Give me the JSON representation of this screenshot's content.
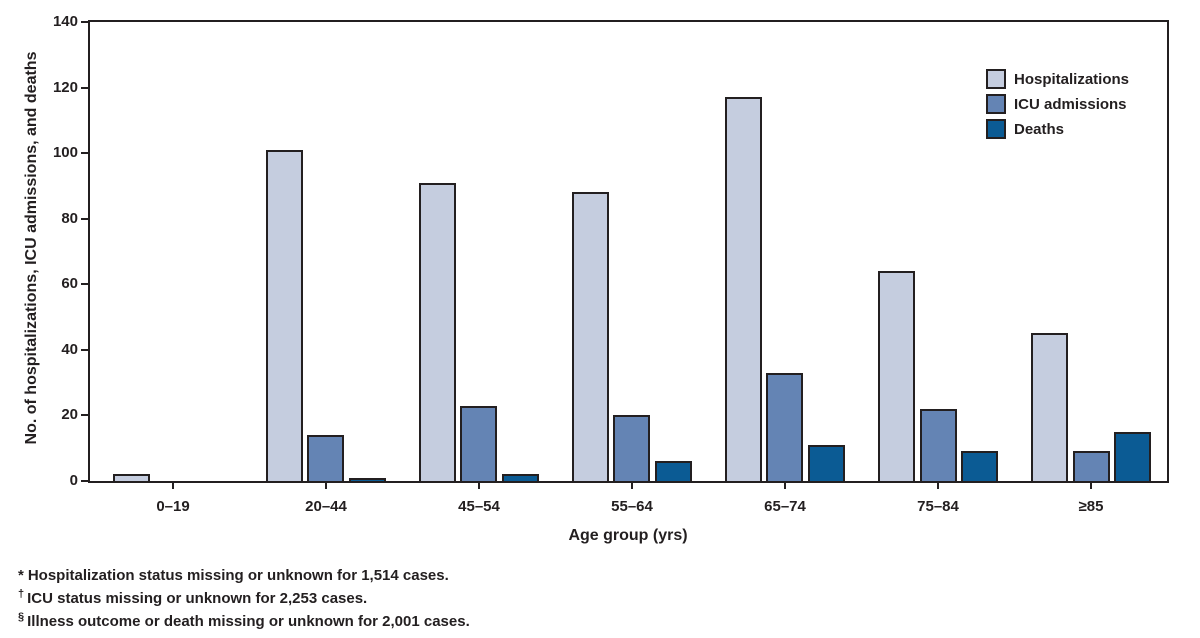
{
  "chart_data": {
    "type": "bar",
    "title": "",
    "xlabel": "Age group (yrs)",
    "ylabel": "No. of hospitalizations, ICU admissions, and deaths",
    "categories": [
      "0–19",
      "20–44",
      "45–54",
      "55–64",
      "65–74",
      "75–84",
      "≥85"
    ],
    "series": [
      {
        "name": "Hospitalizations",
        "color": "#c5cddf",
        "values": [
          2,
          101,
          91,
          88,
          117,
          64,
          45
        ]
      },
      {
        "name": "ICU admissions",
        "color": "#6484b4",
        "values": [
          0,
          14,
          23,
          20,
          33,
          22,
          9
        ]
      },
      {
        "name": "Deaths",
        "color": "#0b5b94",
        "values": [
          0,
          1,
          2,
          6,
          11,
          9,
          15
        ]
      }
    ],
    "ylim": [
      0,
      140
    ],
    "yticks": [
      0,
      20,
      40,
      60,
      80,
      100,
      120,
      140
    ],
    "grid": false,
    "legend_position": "top-right-inside",
    "axis_color": "#231f20",
    "bar_border_color": "#231f20"
  },
  "footnotes": [
    {
      "marker": "*",
      "text": "Hospitalization status missing or unknown for 1,514 cases."
    },
    {
      "marker": "†",
      "text": "ICU status missing or unknown for 2,253 cases."
    },
    {
      "marker": "§",
      "text": "Illness outcome or death missing or unknown for 2,001 cases."
    }
  ]
}
